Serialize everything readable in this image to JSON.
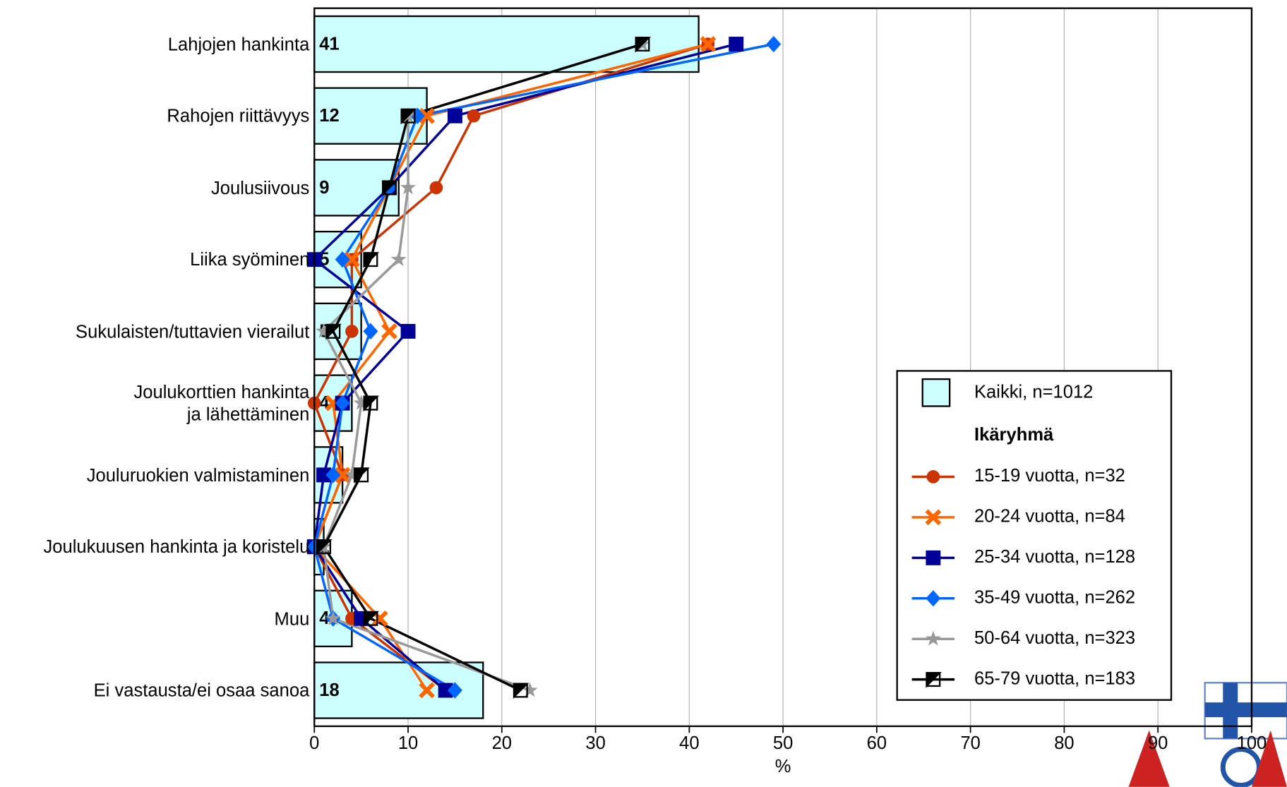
{
  "chart_data": {
    "type": "bar-line",
    "categories": [
      "Lahjojen hankinta",
      "Rahojen riittävyys",
      "Joulusiivous",
      "Liika syöminen",
      "Sukulaisten/tuttavien vierailut",
      "Joulukorttien hankinta\nja lähettäminen",
      "Jouluruokien valmistaminen",
      "Joulukuusen hankinta ja koristelu",
      "Muu",
      "Ei vastausta/ei osaa sanoa"
    ],
    "bars": {
      "name": "Kaikki, n=1012",
      "color": "#ccffff",
      "values": [
        41,
        12,
        9,
        5,
        5,
        4,
        3,
        1,
        4,
        18
      ]
    },
    "legend_title": "Ikäryhmä",
    "series": [
      {
        "name": "15-19 vuotta, n=32",
        "color": "#cc3300",
        "marker": "circle",
        "values": [
          42,
          17,
          13,
          4,
          4,
          0,
          3,
          0,
          4,
          14
        ]
      },
      {
        "name": "20-24 vuotta, n=84",
        "color": "#ff6600",
        "marker": "x",
        "values": [
          42,
          12,
          8,
          4,
          8,
          2,
          3,
          0,
          7,
          12
        ]
      },
      {
        "name": "25-34 vuotta, n=128",
        "color": "#000099",
        "marker": "square",
        "values": [
          45,
          15,
          8,
          0,
          10,
          3,
          1,
          0,
          5,
          14
        ]
      },
      {
        "name": "35-49 vuotta, n=262",
        "color": "#0066ff",
        "marker": "diamond",
        "values": [
          49,
          11,
          8,
          3,
          6,
          3,
          2,
          0,
          2,
          15
        ]
      },
      {
        "name": "50-64 vuotta, n=323",
        "color": "#999999",
        "marker": "star",
        "values": [
          35,
          10,
          10,
          9,
          1,
          5,
          4,
          1,
          2,
          23
        ]
      },
      {
        "name": "65-79 vuotta, n=183",
        "color": "#000000",
        "marker": "half-square",
        "values": [
          35,
          10,
          8,
          6,
          2,
          6,
          5,
          1,
          6,
          22
        ]
      }
    ],
    "xlabel": "%",
    "xlim": [
      0,
      100
    ],
    "xticks": [
      0,
      10,
      20,
      30,
      40,
      50,
      60,
      70,
      80,
      90,
      100
    ],
    "grid": true
  }
}
